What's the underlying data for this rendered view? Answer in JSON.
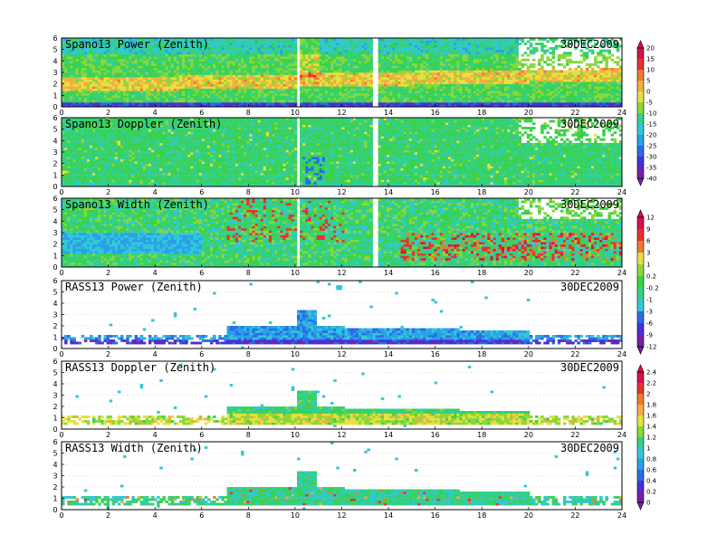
{
  "chart_data": [
    {
      "type": "heatmap",
      "title": "Spano13 Power (Zenith)",
      "date": "30DEC2009",
      "xlim": [
        0,
        24
      ],
      "ylim": [
        0,
        6
      ],
      "x_ticks": [
        0,
        2,
        4,
        6,
        8,
        10,
        12,
        14,
        16,
        18,
        20,
        22,
        24
      ],
      "y_ticks": [
        0,
        1,
        2,
        3,
        4,
        5,
        6
      ],
      "kind": "power",
      "colorbar": 0
    },
    {
      "type": "heatmap",
      "title": "Spano13 Doppler (Zenith)",
      "date": "30DEC2009",
      "xlim": [
        0,
        24
      ],
      "ylim": [
        0,
        6
      ],
      "x_ticks": [
        0,
        2,
        4,
        6,
        8,
        10,
        12,
        14,
        16,
        18,
        20,
        22,
        24
      ],
      "y_ticks": [
        0,
        1,
        2,
        3,
        4,
        5,
        6
      ],
      "kind": "doppler",
      "colorbar": 0
    },
    {
      "type": "heatmap",
      "title": "Spano13 Width (Zenith)",
      "date": "30DEC2009",
      "xlim": [
        0,
        24
      ],
      "ylim": [
        0,
        6
      ],
      "x_ticks": [
        0,
        2,
        4,
        6,
        8,
        10,
        12,
        14,
        16,
        18,
        20,
        22,
        24
      ],
      "y_ticks": [
        0,
        1,
        2,
        3,
        4,
        5,
        6
      ],
      "kind": "width",
      "colorbar": 1
    },
    {
      "type": "heatmap",
      "title": "RASS13 Power (Zenith)",
      "date": "30DEC2009",
      "xlim": [
        0,
        24
      ],
      "ylim": [
        0,
        6
      ],
      "x_ticks": [
        0,
        2,
        4,
        6,
        8,
        10,
        12,
        14,
        16,
        18,
        20,
        22,
        24
      ],
      "y_ticks": [
        0,
        1,
        2,
        3,
        4,
        5,
        6
      ],
      "kind": "rass_power",
      "colorbar": 1
    },
    {
      "type": "heatmap",
      "title": "RASS13 Doppler (Zenith)",
      "date": "30DEC2009",
      "xlim": [
        0,
        24
      ],
      "ylim": [
        0,
        6
      ],
      "x_ticks": [
        0,
        2,
        4,
        6,
        8,
        10,
        12,
        14,
        16,
        18,
        20,
        22,
        24
      ],
      "y_ticks": [
        0,
        1,
        2,
        3,
        4,
        5,
        6
      ],
      "kind": "rass_doppler",
      "colorbar": 2
    },
    {
      "type": "heatmap",
      "title": "RASS13 Width (Zenith)",
      "date": "30DEC2009",
      "xlim": [
        0,
        24
      ],
      "ylim": [
        0,
        6
      ],
      "x_ticks": [
        0,
        2,
        4,
        6,
        8,
        10,
        12,
        14,
        16,
        18,
        20,
        22,
        24
      ],
      "y_ticks": [
        0,
        1,
        2,
        3,
        4,
        5,
        6
      ],
      "kind": "rass_width",
      "colorbar": 2
    }
  ],
  "colorbars": [
    {
      "labels": [
        "20",
        "15",
        "10",
        "5",
        "0",
        "-5",
        "-10",
        "-15",
        "-20",
        "-25",
        "-30",
        "-35",
        "-40"
      ]
    },
    {
      "labels": [
        "12",
        "9",
        "6",
        "3",
        "1",
        "0.2",
        "-0.2",
        "-1",
        "-3",
        "-6",
        "-9",
        "-12"
      ]
    },
    {
      "labels": [
        "2.4",
        "2.2",
        "2",
        "1.8",
        "1.6",
        "1.4",
        "1.2",
        "1",
        "0.8",
        "0.6",
        "0.4",
        "0.2",
        "0"
      ]
    }
  ],
  "palette": [
    "#7a1fa8",
    "#4b2fd8",
    "#2a6be8",
    "#2aa0e8",
    "#30c8d8",
    "#33d08a",
    "#3ad24a",
    "#8ad838",
    "#e8e040",
    "#f0b040",
    "#f07a30",
    "#e83030",
    "#d8104a"
  ]
}
